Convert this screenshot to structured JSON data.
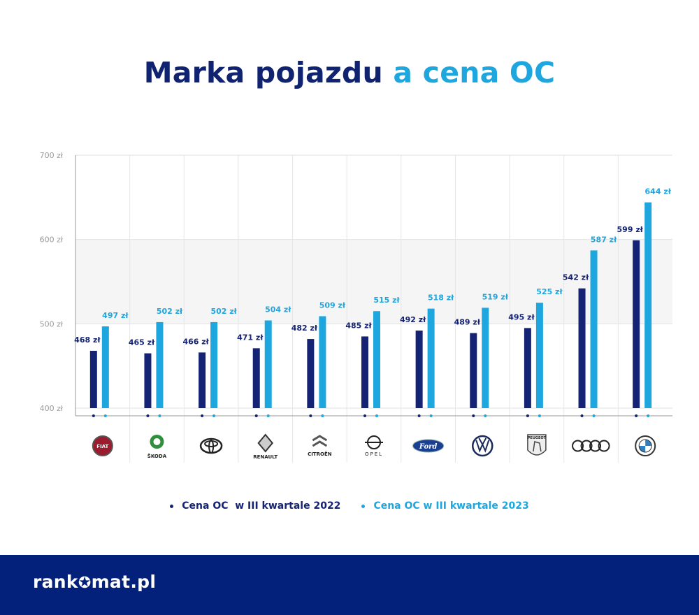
{
  "title_part1": "Marka pojazdu",
  "title_part2": "a cena OC",
  "colors": {
    "series_2022": "#142374",
    "series_2023": "#1ea6df",
    "title_dark": "#0f2370",
    "footer_bg": "#03207a",
    "grid": "#e2e2e2",
    "band": "#f5f5f5",
    "axis": "#9a9a9a",
    "tick_text": "#9a9a9a"
  },
  "chart_data": {
    "type": "bar",
    "categories": [
      "Fiat",
      "Škoda",
      "Toyota",
      "Renault",
      "Citroën",
      "Opel",
      "Ford",
      "Volkswagen",
      "Peugeot",
      "Audi",
      "BMW"
    ],
    "category_icons": [
      "fiat-logo",
      "skoda-logo",
      "toyota-logo",
      "renault-logo",
      "citroen-logo",
      "opel-logo",
      "ford-logo",
      "volkswagen-logo",
      "peugeot-logo",
      "audi-logo",
      "bmw-logo"
    ],
    "logo_texts": [
      "FIAT",
      "ŠKODA",
      "",
      "RENAULT",
      "CITROËN",
      "OPEL",
      "Ford",
      "",
      "PEUGEOT",
      "",
      ""
    ],
    "series": [
      {
        "name": "Cena OC  w III kwartale 2022",
        "values": [
          468,
          465,
          466,
          471,
          482,
          485,
          492,
          489,
          495,
          542,
          599
        ],
        "labels": [
          "468 zł",
          "465 zł",
          "466 zł",
          "471 zł",
          "482 zł",
          "485 zł",
          "492 zł",
          "489 zł",
          "495 zł",
          "542 zł",
          "599 zł"
        ]
      },
      {
        "name": "Cena OC w III kwartale 2023",
        "values": [
          497,
          502,
          502,
          504,
          509,
          515,
          518,
          519,
          525,
          587,
          644
        ],
        "labels": [
          "497 zł",
          "502 zł",
          "502 zł",
          "504 zł",
          "509 zł",
          "515 zł",
          "518 zł",
          "519 zł",
          "525 zł",
          "587 zł",
          "644 zł"
        ]
      }
    ],
    "yticks": [
      700,
      600,
      500,
      400
    ],
    "ytick_labels": [
      "700 zł",
      "600 zł",
      "500 zł",
      "400 zł"
    ],
    "ylim": [
      400,
      700
    ],
    "grid": true,
    "legend_position": "bottom"
  },
  "legend": {
    "item_2022": "Cena OC  w III kwartale 2022",
    "item_2023": "Cena OC w III kwartale 2023"
  },
  "footer": {
    "logo_left": "rank",
    "logo_star": "✪",
    "logo_right": "mat.pl"
  }
}
